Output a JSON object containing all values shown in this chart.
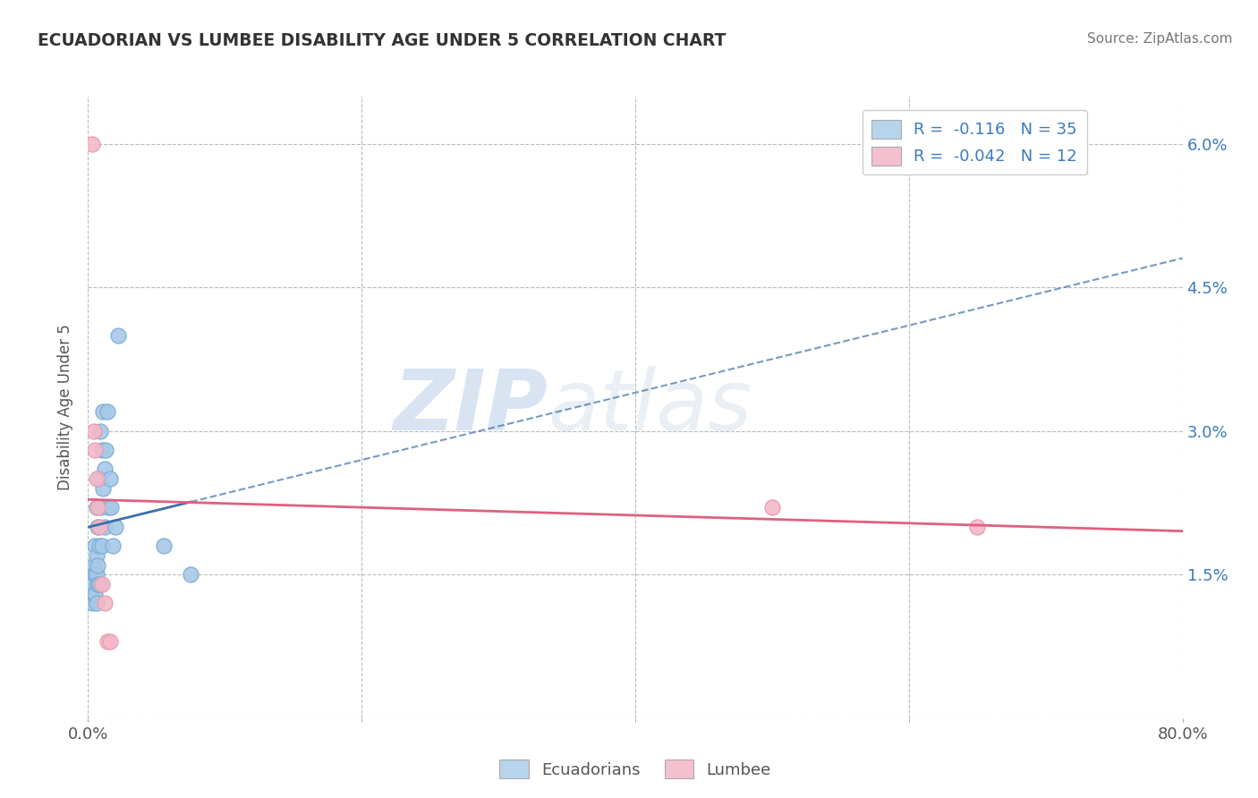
{
  "title": "ECUADORIAN VS LUMBEE DISABILITY AGE UNDER 5 CORRELATION CHART",
  "source": "Source: ZipAtlas.com",
  "ylabel": "Disability Age Under 5",
  "xlim": [
    0.0,
    0.8
  ],
  "ylim": [
    0.0,
    0.065
  ],
  "yticks": [
    0.0,
    0.015,
    0.03,
    0.045,
    0.06
  ],
  "ytick_labels_right": [
    "",
    "1.5%",
    "3.0%",
    "4.5%",
    "6.0%"
  ],
  "xticks": [
    0.0,
    0.2,
    0.4,
    0.6,
    0.8
  ],
  "xtick_labels": [
    "0.0%",
    "",
    "",
    "",
    "80.0%"
  ],
  "blue_scatter_color": "#a8c8e8",
  "blue_scatter_edge": "#7aafd4",
  "pink_scatter_color": "#f4b8c8",
  "pink_scatter_edge": "#e89ab0",
  "blue_line_color": "#3a6faa",
  "pink_line_color": "#e06080",
  "watermark_color": "#d0dff0",
  "ecuadorian_x": [
    0.003,
    0.003,
    0.004,
    0.004,
    0.005,
    0.005,
    0.005,
    0.006,
    0.006,
    0.006,
    0.006,
    0.007,
    0.007,
    0.007,
    0.008,
    0.008,
    0.008,
    0.009,
    0.009,
    0.01,
    0.01,
    0.011,
    0.011,
    0.012,
    0.012,
    0.013,
    0.014,
    0.015,
    0.016,
    0.017,
    0.018,
    0.02,
    0.022,
    0.055,
    0.075
  ],
  "ecuadorian_y": [
    0.014,
    0.012,
    0.016,
    0.013,
    0.018,
    0.015,
    0.013,
    0.022,
    0.017,
    0.015,
    0.012,
    0.02,
    0.016,
    0.014,
    0.025,
    0.018,
    0.014,
    0.03,
    0.022,
    0.028,
    0.018,
    0.032,
    0.024,
    0.026,
    0.02,
    0.028,
    0.032,
    0.022,
    0.025,
    0.022,
    0.018,
    0.02,
    0.04,
    0.018,
    0.015
  ],
  "lumbee_x": [
    0.003,
    0.004,
    0.005,
    0.006,
    0.007,
    0.008,
    0.01,
    0.012,
    0.014,
    0.016,
    0.5,
    0.65
  ],
  "lumbee_y": [
    0.06,
    0.03,
    0.028,
    0.025,
    0.022,
    0.02,
    0.014,
    0.012,
    0.008,
    0.008,
    0.022,
    0.02
  ],
  "background_color": "#ffffff",
  "grid_color": "#bbbbbb"
}
